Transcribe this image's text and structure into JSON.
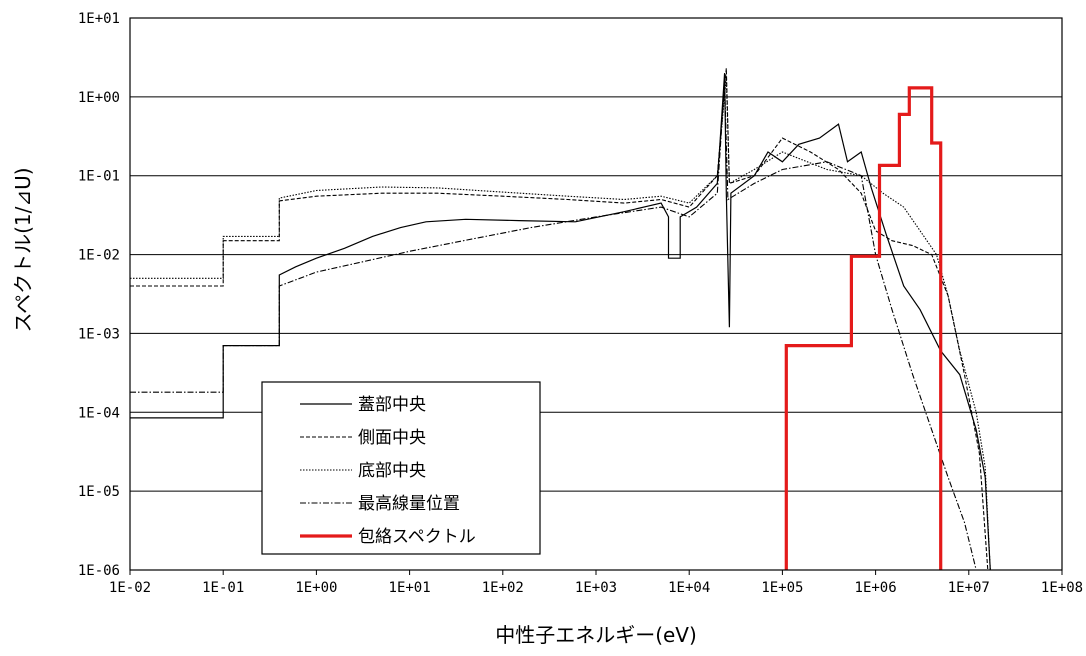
{
  "chart_data": {
    "type": "line",
    "title": "",
    "xlabel": "中性子エネルギー(eV)",
    "ylabel": "スペクトル(1/⊿U)",
    "xscale": "log",
    "yscale": "log",
    "xlim": [
      0.01,
      100000000
    ],
    "ylim": [
      1e-06,
      10
    ],
    "grid": "horizontal",
    "legend_position": "bottom-left",
    "x_tick_labels": [
      "1E-02",
      "1E-01",
      "1E+00",
      "1E+01",
      "1E+02",
      "1E+03",
      "1E+04",
      "1E+05",
      "1E+06",
      "1E+07",
      "1E+08"
    ],
    "x_tick_values": [
      0.01,
      0.1,
      1,
      10,
      100,
      1000,
      10000,
      100000,
      1000000,
      10000000,
      100000000
    ],
    "y_tick_labels": [
      "1E+01",
      "1E+00",
      "1E-01",
      "1E-02",
      "1E-03",
      "1E-04",
      "1E-05",
      "1E-06"
    ],
    "y_tick_values": [
      10,
      1,
      0.1,
      0.01,
      0.001,
      0.0001,
      1e-05,
      1e-06
    ],
    "series": [
      {
        "name": "蓋部中央",
        "style": "solid",
        "color": "#000000",
        "points": [
          [
            0.01,
            8.5e-05
          ],
          [
            0.1,
            8.5e-05
          ],
          [
            0.1,
            0.0007
          ],
          [
            0.4,
            0.0007
          ],
          [
            0.4,
            0.0055
          ],
          [
            0.6,
            0.007
          ],
          [
            1,
            0.009
          ],
          [
            2,
            0.012
          ],
          [
            4,
            0.017
          ],
          [
            8,
            0.022
          ],
          [
            15,
            0.026
          ],
          [
            40,
            0.028
          ],
          [
            150,
            0.027
          ],
          [
            600,
            0.026
          ],
          [
            2000,
            0.035
          ],
          [
            5000,
            0.045
          ],
          [
            6000,
            0.03
          ],
          [
            6000,
            0.009
          ],
          [
            8000,
            0.009
          ],
          [
            8000,
            0.03
          ],
          [
            12000,
            0.04
          ],
          [
            20000,
            0.08
          ],
          [
            24000,
            2
          ],
          [
            25000,
            0.06
          ],
          [
            27000,
            0.0012
          ],
          [
            28000,
            0.06
          ],
          [
            50000,
            0.1
          ],
          [
            70000,
            0.2
          ],
          [
            100000,
            0.15
          ],
          [
            150000,
            0.25
          ],
          [
            250000,
            0.3
          ],
          [
            400000,
            0.45
          ],
          [
            500000,
            0.15
          ],
          [
            700000,
            0.2
          ],
          [
            900000,
            0.07
          ],
          [
            1300000,
            0.018
          ],
          [
            2000000,
            0.004
          ],
          [
            3000000,
            0.002
          ],
          [
            5000000,
            0.0006
          ],
          [
            8000000,
            0.0003
          ],
          [
            12000000,
            6e-05
          ],
          [
            15000000,
            1.5e-05
          ],
          [
            17000000,
            1e-06
          ]
        ]
      },
      {
        "name": "側面中央",
        "style": "dashed",
        "color": "#000000",
        "points": [
          [
            0.01,
            0.004
          ],
          [
            0.1,
            0.004
          ],
          [
            0.1,
            0.015
          ],
          [
            0.4,
            0.015
          ],
          [
            0.4,
            0.048
          ],
          [
            1,
            0.055
          ],
          [
            5,
            0.06
          ],
          [
            20,
            0.06
          ],
          [
            100,
            0.055
          ],
          [
            500,
            0.05
          ],
          [
            2000,
            0.045
          ],
          [
            5000,
            0.05
          ],
          [
            10000,
            0.04
          ],
          [
            20000,
            0.1
          ],
          [
            25000,
            2.3
          ],
          [
            27000,
            0.08
          ],
          [
            50000,
            0.1
          ],
          [
            100000,
            0.3
          ],
          [
            200000,
            0.2
          ],
          [
            400000,
            0.12
          ],
          [
            700000,
            0.06
          ],
          [
            1000000,
            0.02
          ],
          [
            1500000,
            0.015
          ],
          [
            2500000,
            0.013
          ],
          [
            4000000,
            0.01
          ],
          [
            6000000,
            0.003
          ],
          [
            9000000,
            0.0003
          ],
          [
            13000000,
            3e-05
          ],
          [
            16000000,
            1e-06
          ]
        ]
      },
      {
        "name": "底部中央",
        "style": "dotted",
        "color": "#000000",
        "points": [
          [
            0.01,
            0.005
          ],
          [
            0.1,
            0.005
          ],
          [
            0.1,
            0.017
          ],
          [
            0.4,
            0.017
          ],
          [
            0.4,
            0.052
          ],
          [
            1,
            0.065
          ],
          [
            5,
            0.072
          ],
          [
            20,
            0.07
          ],
          [
            100,
            0.062
          ],
          [
            500,
            0.055
          ],
          [
            2000,
            0.05
          ],
          [
            5000,
            0.055
          ],
          [
            10000,
            0.045
          ],
          [
            20000,
            0.1
          ],
          [
            25000,
            1.8
          ],
          [
            27000,
            0.08
          ],
          [
            50000,
            0.12
          ],
          [
            100000,
            0.2
          ],
          [
            300000,
            0.12
          ],
          [
            700000,
            0.1
          ],
          [
            1200000,
            0.06
          ],
          [
            2000000,
            0.04
          ],
          [
            3000000,
            0.02
          ],
          [
            4500000,
            0.01
          ],
          [
            6000000,
            0.003
          ],
          [
            8000000,
            0.0006
          ],
          [
            12000000,
            0.0001
          ],
          [
            15000000,
            2e-05
          ],
          [
            17000000,
            1e-06
          ]
        ]
      },
      {
        "name": "最高線量位置",
        "style": "dash-dot",
        "color": "#000000",
        "points": [
          [
            0.01,
            0.00018
          ],
          [
            0.1,
            0.00018
          ],
          [
            0.1,
            0.0007
          ],
          [
            0.4,
            0.0007
          ],
          [
            0.4,
            0.004
          ],
          [
            1,
            0.006
          ],
          [
            3,
            0.008
          ],
          [
            10,
            0.011
          ],
          [
            50,
            0.016
          ],
          [
            200,
            0.022
          ],
          [
            1000,
            0.03
          ],
          [
            5000,
            0.04
          ],
          [
            10000,
            0.03
          ],
          [
            20000,
            0.06
          ],
          [
            24000,
            1.5
          ],
          [
            26000,
            0.05
          ],
          [
            50000,
            0.08
          ],
          [
            100000,
            0.12
          ],
          [
            300000,
            0.15
          ],
          [
            700000,
            0.1
          ],
          [
            1000000,
            0.01
          ],
          [
            1500000,
            0.002
          ],
          [
            2500000,
            0.0003
          ],
          [
            4000000,
            6e-05
          ],
          [
            6000000,
            1.5e-05
          ],
          [
            9000000,
            4e-06
          ],
          [
            12000000,
            1e-06
          ]
        ]
      },
      {
        "name": "包絡スペクトル",
        "style": "solid-thick",
        "color": "#e41a1a",
        "points": [
          [
            110000,
            1e-06
          ],
          [
            110000,
            0.0007
          ],
          [
            550000,
            0.0007
          ],
          [
            550000,
            0.0095
          ],
          [
            1100000,
            0.0095
          ],
          [
            1100000,
            0.135
          ],
          [
            1800000,
            0.135
          ],
          [
            1800000,
            0.6
          ],
          [
            2300000,
            0.6
          ],
          [
            2300000,
            1.3
          ],
          [
            4000000,
            1.3
          ],
          [
            4000000,
            0.26
          ],
          [
            5000000,
            0.26
          ],
          [
            5000000,
            1e-06
          ]
        ]
      }
    ]
  }
}
